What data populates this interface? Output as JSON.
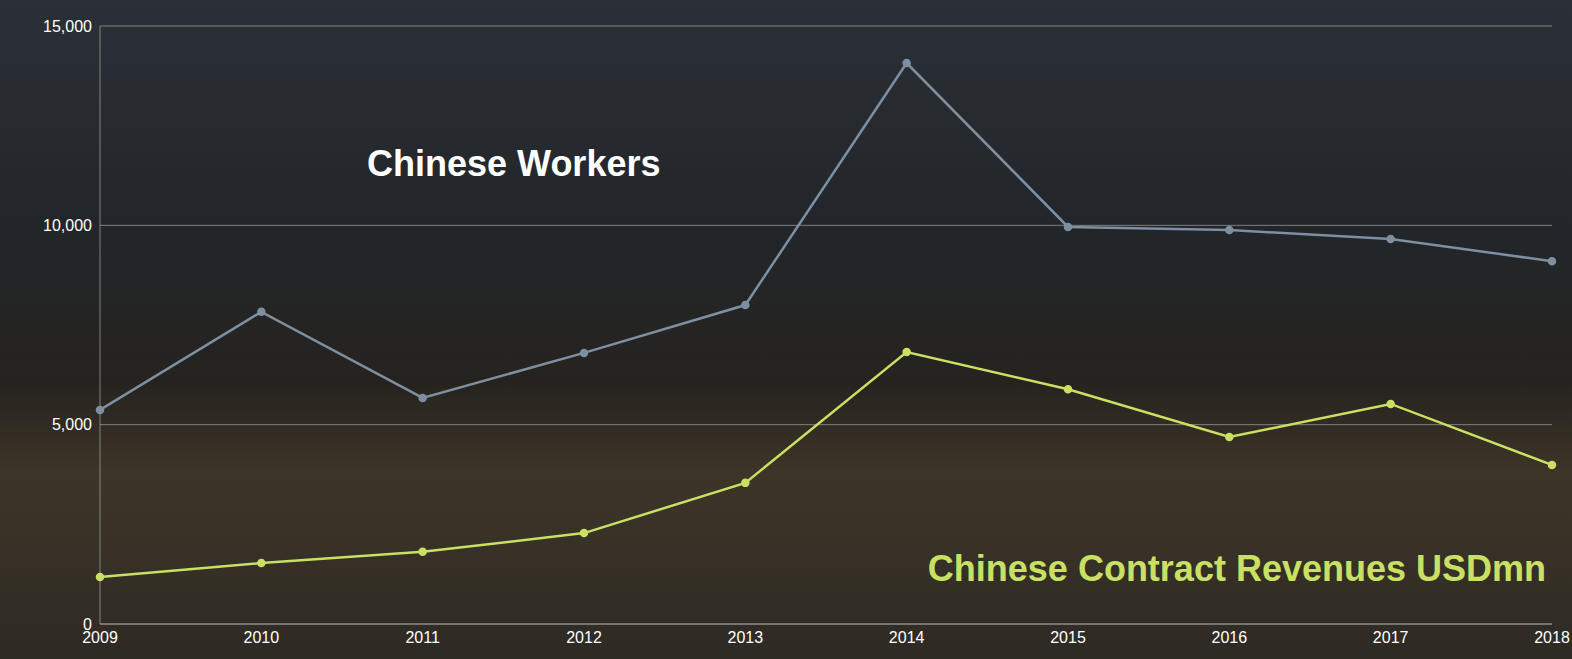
{
  "chart_data": {
    "type": "line",
    "categories": [
      "2009",
      "2010",
      "2011",
      "2012",
      "2013",
      "2014",
      "2015",
      "2016",
      "2017",
      "2018"
    ],
    "series": [
      {
        "name": "Chinese Workers",
        "color": "#7d8fa0",
        "marker": "circle",
        "values": [
          5370,
          7830,
          5670,
          6800,
          8000,
          14070,
          9960,
          9880,
          9660,
          9100
        ]
      },
      {
        "name": "Chinese Contract Revenues USDmn",
        "color": "#c9e063",
        "marker": "circle",
        "values": [
          1180,
          1530,
          1810,
          2280,
          3540,
          6820,
          5890,
          4690,
          5520,
          3990
        ]
      }
    ],
    "ylim": [
      0,
      15000
    ],
    "yticks": [
      0,
      {
        "value": 5000,
        "label": "5,000"
      },
      {
        "value": 10000,
        "label": "10,000"
      },
      {
        "value": 15000,
        "label": "15,000"
      }
    ],
    "grid": true
  }
}
